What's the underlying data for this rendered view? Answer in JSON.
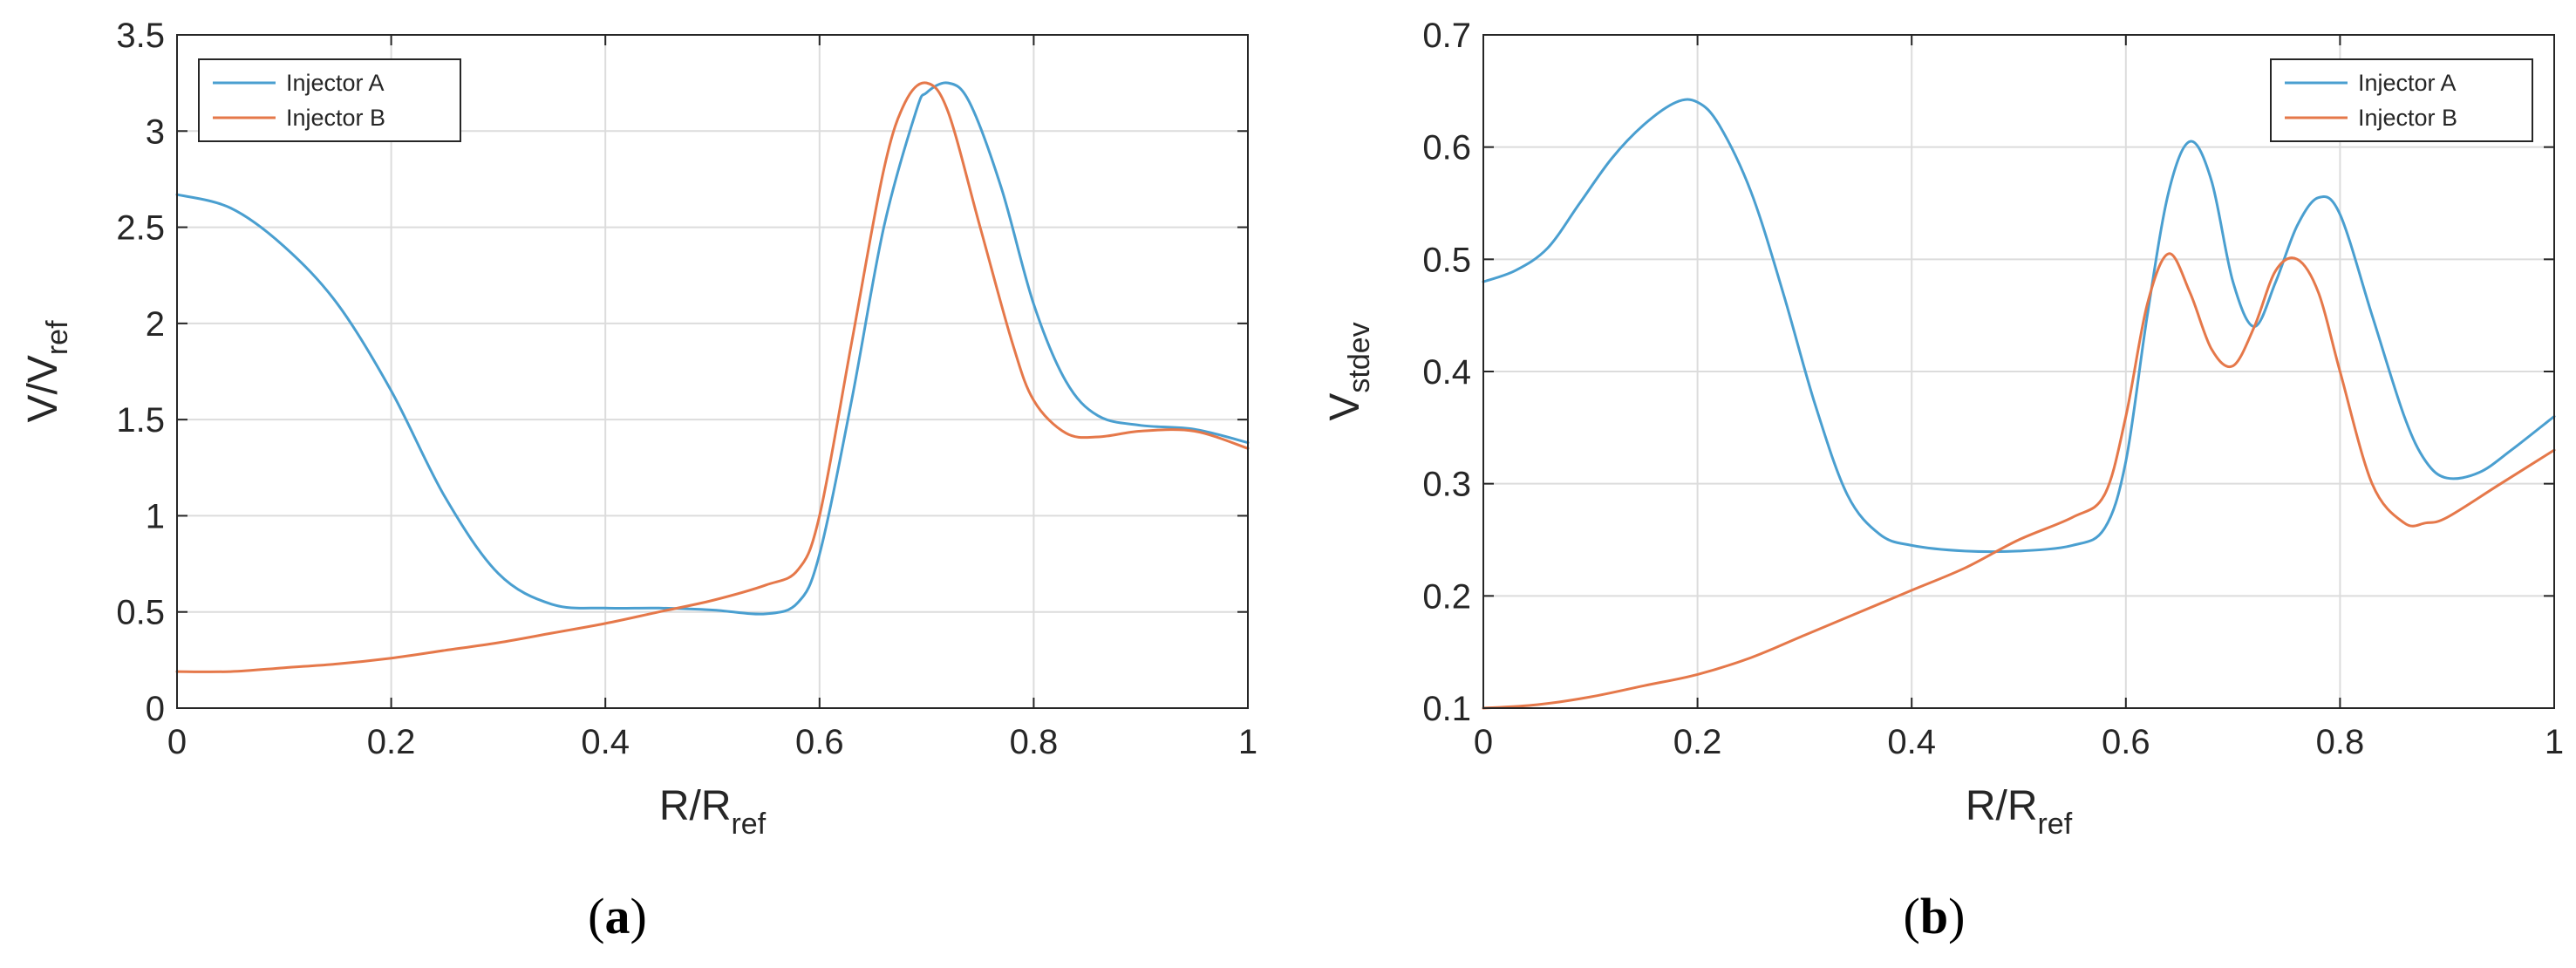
{
  "colors": {
    "injector_a": "#4a9fd0",
    "injector_b": "#e5784a"
  },
  "chart_data": [
    {
      "id": "a",
      "type": "line",
      "caption": "a",
      "xlabel": "R/R",
      "xlabel_sub": "ref",
      "ylabel": "V/V",
      "ylabel_sub": "ref",
      "xlim": [
        0,
        1
      ],
      "ylim": [
        0,
        3.5
      ],
      "xticks": [
        0,
        0.2,
        0.4,
        0.6,
        0.8,
        1
      ],
      "xtick_labels": [
        "0",
        "0.2",
        "0.4",
        "0.6",
        "0.8",
        "1"
      ],
      "yticks": [
        0,
        0.5,
        1,
        1.5,
        2,
        2.5,
        3,
        3.5
      ],
      "ytick_labels": [
        "0",
        "0.5",
        "1",
        "1.5",
        "2",
        "2.5",
        "3",
        "3.5"
      ],
      "grid": true,
      "legend": "top-left",
      "series": [
        {
          "name": "Injector A",
          "color": "#4a9fd0",
          "x": [
            0,
            0.05,
            0.1,
            0.15,
            0.2,
            0.25,
            0.3,
            0.35,
            0.4,
            0.45,
            0.5,
            0.55,
            0.58,
            0.6,
            0.63,
            0.66,
            0.69,
            0.7,
            0.72,
            0.74,
            0.77,
            0.8,
            0.83,
            0.86,
            0.9,
            0.95,
            1
          ],
          "y": [
            2.67,
            2.6,
            2.4,
            2.1,
            1.65,
            1.1,
            0.7,
            0.54,
            0.52,
            0.52,
            0.51,
            0.49,
            0.55,
            0.8,
            1.6,
            2.5,
            3.1,
            3.2,
            3.25,
            3.15,
            2.7,
            2.1,
            1.7,
            1.52,
            1.47,
            1.45,
            1.38
          ]
        },
        {
          "name": "Injector B",
          "color": "#e5784a",
          "x": [
            0,
            0.05,
            0.1,
            0.15,
            0.2,
            0.25,
            0.3,
            0.35,
            0.4,
            0.45,
            0.5,
            0.55,
            0.58,
            0.6,
            0.63,
            0.66,
            0.68,
            0.7,
            0.72,
            0.75,
            0.78,
            0.8,
            0.83,
            0.86,
            0.9,
            0.95,
            1
          ],
          "y": [
            0.19,
            0.19,
            0.21,
            0.23,
            0.26,
            0.3,
            0.34,
            0.39,
            0.44,
            0.5,
            0.56,
            0.64,
            0.72,
            1.0,
            1.9,
            2.8,
            3.15,
            3.25,
            3.1,
            2.5,
            1.9,
            1.6,
            1.43,
            1.41,
            1.44,
            1.44,
            1.35
          ]
        }
      ]
    },
    {
      "id": "b",
      "type": "line",
      "caption": "b",
      "xlabel": "R/R",
      "xlabel_sub": "ref",
      "ylabel": "V",
      "ylabel_sub": "stdev",
      "xlim": [
        0,
        1
      ],
      "ylim": [
        0.1,
        0.7
      ],
      "xticks": [
        0,
        0.2,
        0.4,
        0.6,
        0.8,
        1
      ],
      "xtick_labels": [
        "0",
        "0.2",
        "0.4",
        "0.6",
        "0.8",
        "1"
      ],
      "yticks": [
        0.1,
        0.2,
        0.3,
        0.4,
        0.5,
        0.6,
        0.7
      ],
      "ytick_labels": [
        "0.1",
        "0.2",
        "0.3",
        "0.4",
        "0.5",
        "0.6",
        "0.7"
      ],
      "grid": true,
      "legend": "top-right",
      "series": [
        {
          "name": "Injector A",
          "color": "#4a9fd0",
          "x": [
            0,
            0.03,
            0.06,
            0.09,
            0.12,
            0.15,
            0.18,
            0.2,
            0.22,
            0.25,
            0.28,
            0.31,
            0.34,
            0.37,
            0.4,
            0.45,
            0.5,
            0.55,
            0.58,
            0.6,
            0.62,
            0.64,
            0.66,
            0.68,
            0.7,
            0.72,
            0.74,
            0.76,
            0.78,
            0.8,
            0.83,
            0.86,
            0.88,
            0.9,
            0.93,
            0.96,
            1
          ],
          "y": [
            0.48,
            0.49,
            0.51,
            0.55,
            0.59,
            0.62,
            0.64,
            0.64,
            0.62,
            0.56,
            0.47,
            0.37,
            0.29,
            0.255,
            0.245,
            0.24,
            0.24,
            0.245,
            0.26,
            0.32,
            0.45,
            0.56,
            0.605,
            0.57,
            0.48,
            0.44,
            0.48,
            0.53,
            0.555,
            0.54,
            0.45,
            0.36,
            0.32,
            0.305,
            0.31,
            0.33,
            0.36
          ]
        },
        {
          "name": "Injector B",
          "color": "#e5784a",
          "x": [
            0,
            0.05,
            0.1,
            0.15,
            0.2,
            0.25,
            0.3,
            0.35,
            0.4,
            0.45,
            0.5,
            0.55,
            0.58,
            0.6,
            0.62,
            0.64,
            0.66,
            0.68,
            0.7,
            0.72,
            0.74,
            0.76,
            0.78,
            0.8,
            0.83,
            0.86,
            0.88,
            0.9,
            0.95,
            1
          ],
          "y": [
            0.1,
            0.103,
            0.11,
            0.12,
            0.13,
            0.145,
            0.165,
            0.185,
            0.205,
            0.225,
            0.25,
            0.27,
            0.29,
            0.36,
            0.46,
            0.505,
            0.47,
            0.42,
            0.405,
            0.44,
            0.49,
            0.5,
            0.47,
            0.4,
            0.3,
            0.265,
            0.265,
            0.27,
            0.3,
            0.33
          ]
        }
      ]
    }
  ]
}
